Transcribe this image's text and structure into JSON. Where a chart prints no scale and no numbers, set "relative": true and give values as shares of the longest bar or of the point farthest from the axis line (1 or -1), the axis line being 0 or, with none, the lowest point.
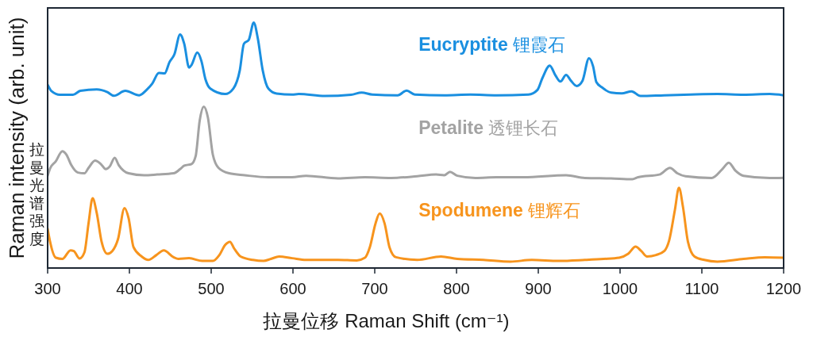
{
  "chart_data": {
    "type": "line",
    "relative": true,
    "xlabel": "拉曼位移 Raman Shift (cm⁻¹)",
    "ylabel": "Raman intensity (arb. unit)",
    "annotations": [
      "拉曼光谱强度"
    ],
    "xlim": [
      300,
      1200
    ],
    "xticks": [
      300,
      400,
      500,
      600,
      700,
      800,
      900,
      1000,
      1100,
      1200
    ],
    "marker": "none",
    "series": [
      {
        "name": "Eucryptite 锂霞石",
        "color": "#1a8fe0",
        "x": [
          300,
          305,
          315,
          331,
          340,
          360,
          373,
          381,
          395,
          412,
          421,
          428,
          436,
          443,
          449,
          455,
          462,
          467,
          473,
          476,
          483,
          488,
          493,
          499,
          517,
          527,
          535,
          540,
          546,
          552,
          557,
          563,
          570,
          580,
          599,
          607,
          639,
          671,
          684,
          697,
          728,
          739,
          749,
          785,
          817,
          849,
          888,
          899,
          905,
          914,
          921,
          927,
          934,
          940,
          947,
          954,
          962,
          967,
          971,
          978,
          989,
          1002,
          1014,
          1025,
          1054,
          1086,
          1119,
          1151,
          1183,
          1200
        ],
        "values": [
          0.747,
          0.72,
          0.706,
          0.706,
          0.722,
          0.728,
          0.717,
          0.702,
          0.722,
          0.704,
          0.726,
          0.752,
          0.795,
          0.793,
          0.839,
          0.871,
          0.952,
          0.914,
          0.817,
          0.828,
          0.878,
          0.844,
          0.769,
          0.731,
          0.709,
          0.731,
          0.806,
          0.914,
          0.93,
          1.0,
          0.936,
          0.806,
          0.731,
          0.711,
          0.707,
          0.709,
          0.701,
          0.706,
          0.715,
          0.707,
          0.704,
          0.723,
          0.707,
          0.704,
          0.707,
          0.704,
          0.707,
          0.726,
          0.774,
          0.825,
          0.785,
          0.76,
          0.787,
          0.763,
          0.742,
          0.763,
          0.855,
          0.822,
          0.758,
          0.736,
          0.715,
          0.712,
          0.72,
          0.701,
          0.704,
          0.707,
          0.709,
          0.706,
          0.709,
          0.704
        ]
      },
      {
        "name": "Petalite 透锂长石",
        "color": "#a3a3a3",
        "x": [
          300,
          303,
          310,
          318,
          323,
          329,
          337,
          345,
          350,
          358,
          365,
          371,
          376,
          382,
          387,
          399,
          418,
          434,
          454,
          462,
          467,
          476,
          481,
          486,
          491,
          496,
          502,
          509,
          522,
          541,
          570,
          599,
          616,
          655,
          688,
          720,
          752,
          775,
          785,
          792,
          801,
          823,
          849,
          882,
          934,
          957,
          989,
          1015,
          1022,
          1048,
          1061,
          1070,
          1080,
          1112,
          1125,
          1133,
          1141,
          1151,
          1183,
          1200
        ],
        "values": [
          0.376,
          0.406,
          0.435,
          0.476,
          0.462,
          0.419,
          0.389,
          0.386,
          0.408,
          0.438,
          0.424,
          0.403,
          0.414,
          0.449,
          0.419,
          0.386,
          0.378,
          0.381,
          0.386,
          0.403,
          0.417,
          0.424,
          0.456,
          0.602,
          0.658,
          0.613,
          0.462,
          0.408,
          0.386,
          0.378,
          0.37,
          0.37,
          0.376,
          0.365,
          0.37,
          0.367,
          0.374,
          0.381,
          0.378,
          0.392,
          0.376,
          0.367,
          0.37,
          0.37,
          0.378,
          0.367,
          0.365,
          0.362,
          0.37,
          0.381,
          0.408,
          0.386,
          0.374,
          0.367,
          0.403,
          0.429,
          0.397,
          0.376,
          0.367,
          0.368
        ]
      },
      {
        "name": "Spodumene 锂辉石",
        "color": "#f7941d",
        "x": [
          300,
          303,
          310,
          318,
          328,
          332,
          339,
          345,
          350,
          355,
          360,
          366,
          373,
          379,
          386,
          394,
          399,
          405,
          415,
          423,
          433,
          442,
          454,
          460,
          473,
          489,
          502,
          510,
          517,
          523,
          528,
          536,
          551,
          564,
          573,
          583,
          599,
          616,
          655,
          678,
          688,
          694,
          701,
          706,
          712,
          718,
          726,
          752,
          781,
          801,
          833,
          866,
          892,
          925,
          957,
          980,
          999,
          1010,
          1019,
          1026,
          1033,
          1044,
          1054,
          1060,
          1067,
          1072,
          1077,
          1083,
          1091,
          1103,
          1119,
          1151,
          1177,
          1200
        ],
        "values": [
          0.16,
          0.107,
          0.042,
          0.037,
          0.072,
          0.069,
          0.039,
          0.064,
          0.182,
          0.284,
          0.225,
          0.107,
          0.058,
          0.069,
          0.117,
          0.244,
          0.203,
          0.085,
          0.047,
          0.033,
          0.053,
          0.072,
          0.044,
          0.037,
          0.04,
          0.029,
          0.029,
          0.053,
          0.094,
          0.107,
          0.08,
          0.047,
          0.033,
          0.029,
          0.037,
          0.047,
          0.04,
          0.033,
          0.033,
          0.031,
          0.042,
          0.085,
          0.182,
          0.222,
          0.182,
          0.085,
          0.044,
          0.033,
          0.047,
          0.037,
          0.033,
          0.026,
          0.033,
          0.029,
          0.033,
          0.037,
          0.042,
          0.058,
          0.087,
          0.069,
          0.047,
          0.053,
          0.069,
          0.112,
          0.236,
          0.327,
          0.247,
          0.107,
          0.047,
          0.033,
          0.026,
          0.037,
          0.044,
          0.042
        ]
      }
    ]
  }
}
